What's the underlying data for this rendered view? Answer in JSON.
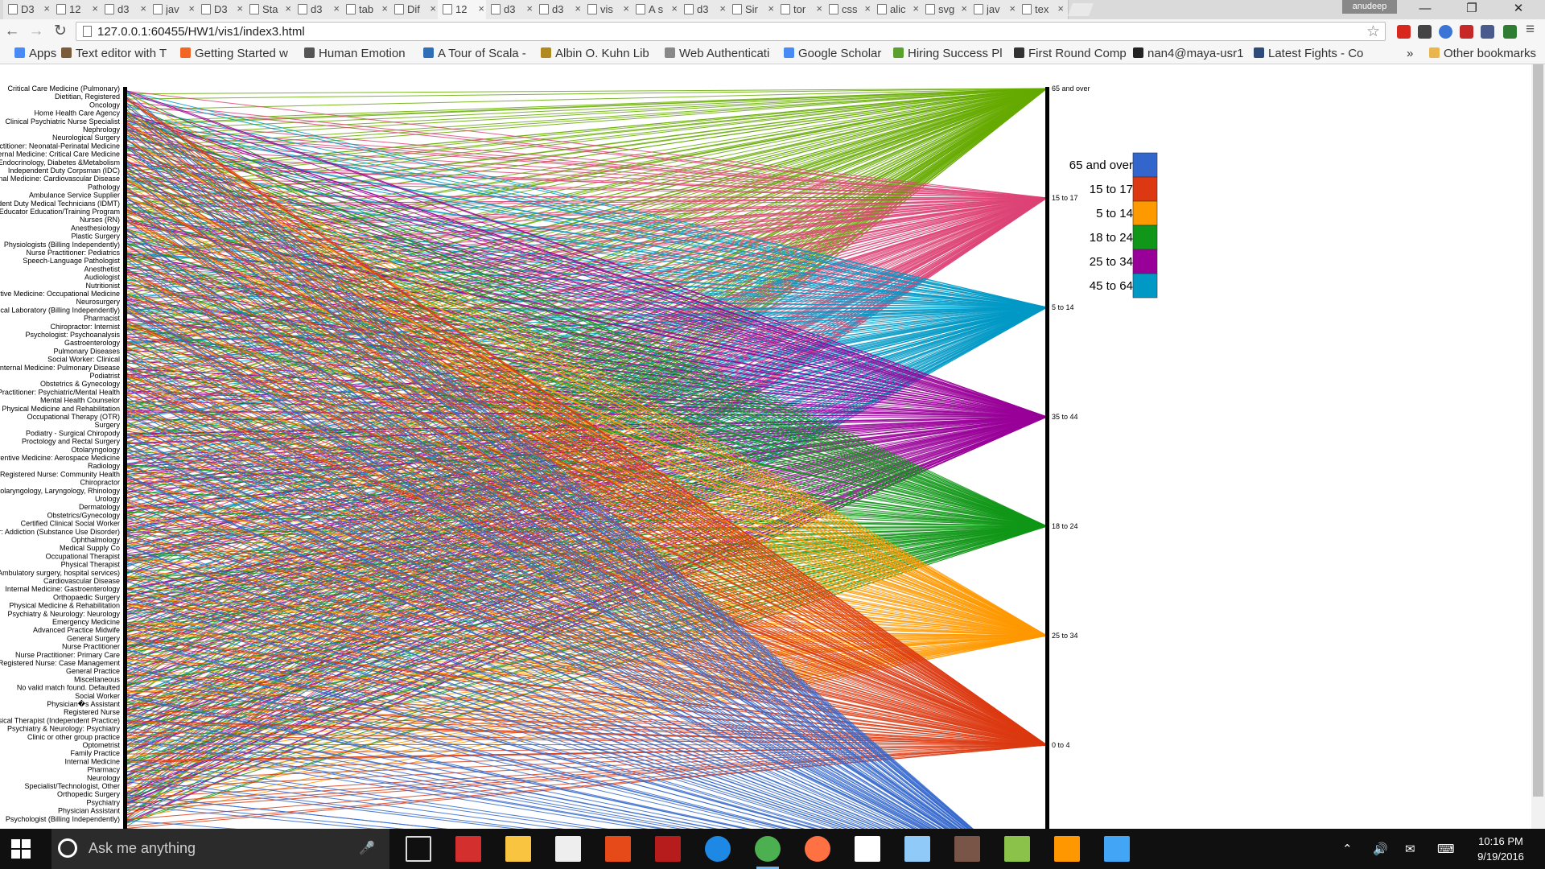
{
  "browser": {
    "tabs": [
      {
        "label": "D3",
        "active": false
      },
      {
        "label": "12",
        "active": false
      },
      {
        "label": "d3",
        "active": false
      },
      {
        "label": "jav",
        "active": false
      },
      {
        "label": "D3",
        "active": false
      },
      {
        "label": "Sta",
        "active": false
      },
      {
        "label": "d3",
        "active": false
      },
      {
        "label": "tab",
        "active": false
      },
      {
        "label": "Dif",
        "active": false
      },
      {
        "label": "12",
        "active": true
      },
      {
        "label": "d3",
        "active": false
      },
      {
        "label": "d3",
        "active": false
      },
      {
        "label": "vis",
        "active": false
      },
      {
        "label": "A s",
        "active": false
      },
      {
        "label": "d3",
        "active": false
      },
      {
        "label": "Sir",
        "active": false
      },
      {
        "label": "tor",
        "active": false
      },
      {
        "label": "css",
        "active": false
      },
      {
        "label": "alic",
        "active": false
      },
      {
        "label": "svg",
        "active": false
      },
      {
        "label": "jav",
        "active": false
      },
      {
        "label": "tex",
        "active": false
      }
    ],
    "profile_name": "anudeep",
    "url": "127.0.0.1:60455/HW1/vis1/index3.html",
    "bookmarks": [
      {
        "label": "Apps",
        "color": "#4a8af4"
      },
      {
        "label": "Text editor with T",
        "color": "#7b5c3a"
      },
      {
        "label": "Getting Started w",
        "color": "#f26522"
      },
      {
        "label": "Human Emotion",
        "color": "#555555"
      },
      {
        "label": "A Tour of Scala -",
        "color": "#2e6fb5"
      },
      {
        "label": "Albin O. Kuhn Lib",
        "color": "#b08a1e"
      },
      {
        "label": "Web Authenticati",
        "color": "#888888"
      },
      {
        "label": "Google Scholar",
        "color": "#4a8af4"
      },
      {
        "label": "Hiring Success Pl",
        "color": "#5aa02c"
      },
      {
        "label": "First Round Comp",
        "color": "#333333"
      },
      {
        "label": "nan4@maya-usr1",
        "color": "#222222"
      },
      {
        "label": "Latest Fights - Co",
        "color": "#2e4a7a"
      }
    ],
    "overflow_label": "»",
    "other_bookmarks": "Other bookmarks"
  },
  "chart_data": {
    "type": "parallel-sets",
    "left_axis_labels": [
      "Critical Care Medicine (Pulmonary)",
      "Dietitian, Registered",
      "Oncology",
      "Home Health Care Agency",
      "Clinical Psychiatric Nurse Specialist",
      "Nephrology",
      "Neurological Surgery",
      "Nurse Practitioner: Neonatal-Perinatal Medicine",
      "Internal Medicine: Critical Care Medicine",
      "Endocrinology, Diabetes &Metabolism",
      "Independent Duty Corpsman (IDC)",
      "Internal Medicine: Cardiovascular Disease",
      "Pathology",
      "Ambulance Service Supplier",
      "Independent Duty Medical Technicians (IDMT)",
      "Health Educator Education/Training Program",
      "Nurses (RN)",
      "Anesthesiology",
      "Plastic Surgery",
      "Physiologists (Billing Independently)",
      "Nurse Practitioner: Pediatrics",
      "Speech-Language Pathologist",
      "Anesthetist",
      "Audiologist",
      "Nutritionist",
      "Preventive Medicine: Occupational Medicine",
      "Neurosurgery",
      "Clinical Laboratory (Billing Independently)",
      "Pharmacist",
      "Chiropractor: Internist",
      "Psychologist: Psychoanalysis",
      "Gastroenterology",
      "Pulmonary Diseases",
      "Social Worker: Clinical",
      "Internal Medicine: Pulmonary Disease",
      "Podiatrist",
      "Obstetrics & Gynecology",
      "Nurse Practitioner: Psychiatric/Mental Health",
      "Mental Health Counselor",
      "Physical Medicine and Rehabilitation",
      "Occupational Therapy (OTR)",
      "Surgery",
      "Podiatry - Surgical Chiropody",
      "Proctology and Rectal Surgery",
      "Otolaryngology",
      "Preventive Medicine: Aerospace Medicine",
      "Radiology",
      "Registered Nurse: Community Health",
      "Chiropractor",
      "Otolaryngology, Laryngology, Rhinology",
      "Urology",
      "Dermatology",
      "Obstetrics/Gynecology",
      "Certified Clinical Social Worker",
      "Counselor: Addiction (Substance Use Disorder)",
      "Ophthalmology",
      "Medical Supply Co",
      "Occupational Therapist",
      "Physical Therapist",
      "Ambulatory surgery, hospital services)",
      "Cardiovascular Disease",
      "Internal Medicine: Gastroenterology",
      "Orthopaedic Surgery",
      "Physical Medicine & Rehabilitation",
      "Psychiatry & Neurology: Neurology",
      "Emergency Medicine",
      "Advanced Practice Midwife",
      "General Surgery",
      "Nurse Practitioner",
      "Nurse Practitioner: Primary Care",
      "Registered Nurse: Case Management",
      "General Practice",
      "Miscellaneous",
      "No valid match found. Defaulted",
      "Social Worker",
      "Physician�s Assistant",
      "Registered Nurse",
      "Physical Therapist (Independent Practice)",
      "Psychiatry & Neurology: Psychiatry",
      "Clinic or other group practice",
      "Optometrist",
      "Family Practice",
      "Internal Medicine",
      "Pharmacy",
      "Neurology",
      "Specialist/Technologist, Other",
      "Orthopedic Surgery",
      "Psychiatry",
      "Physician Assistant",
      "Psychologist (Billing Independently)"
    ],
    "right_axis_labels": [
      "65 and over",
      "15 to 17",
      "5 to 14",
      "35 to 44",
      "18 to 24",
      "25 to 34",
      "0 to 4"
    ],
    "legend": [
      {
        "label": "65 and over",
        "color": "#3366cc"
      },
      {
        "label": "15 to 17",
        "color": "#dc3912"
      },
      {
        "label": "5 to 14",
        "color": "#ff9900"
      },
      {
        "label": "18 to 24",
        "color": "#109618"
      },
      {
        "label": "25 to 34",
        "color": "#990099"
      },
      {
        "label": "45 to 64",
        "color": "#0099c6"
      }
    ],
    "link_colors": {
      "65 and over": "#66aa00",
      "15 to 17": "#dd4477",
      "5 to 14": "#0099c6",
      "35 to 44": "#990099",
      "18 to 24": "#109618",
      "25 to 34": "#ff9900",
      "0 to 4": "#dc3912",
      "45 to 64": "#3366cc"
    }
  },
  "taskbar": {
    "search_placeholder": "Ask me anything",
    "time": "10:16 PM",
    "date": "9/19/2016"
  }
}
